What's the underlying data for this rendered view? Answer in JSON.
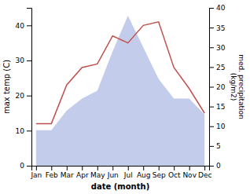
{
  "chart_data": {
    "type": "line",
    "categories": [
      "Jan",
      "Feb",
      "Mar",
      "Apr",
      "May",
      "Jun",
      "Jul",
      "Aug",
      "Sep",
      "Oct",
      "Nov",
      "Dec"
    ],
    "series": [
      {
        "type": "area",
        "axis": "y2",
        "color": "#b8c4e8",
        "values": [
          9,
          9,
          14,
          17,
          19,
          29,
          38,
          30,
          22,
          17,
          17,
          13
        ]
      },
      {
        "type": "line",
        "color": "#c0504d",
        "values": [
          12,
          12,
          23,
          28,
          29,
          37,
          35,
          40,
          41,
          28,
          22,
          15
        ]
      }
    ],
    "xlabel": "date (month)",
    "ylabel": "max temp (C)",
    "y2label": "med. precipitation\n(kg/m2)",
    "ylim": [
      0,
      45
    ],
    "yticks": [
      0,
      10,
      20,
      30,
      40
    ],
    "y2lim": [
      0,
      40
    ],
    "y2ticks": [
      0,
      5,
      10,
      15,
      20,
      25,
      30,
      35,
      40
    ]
  }
}
